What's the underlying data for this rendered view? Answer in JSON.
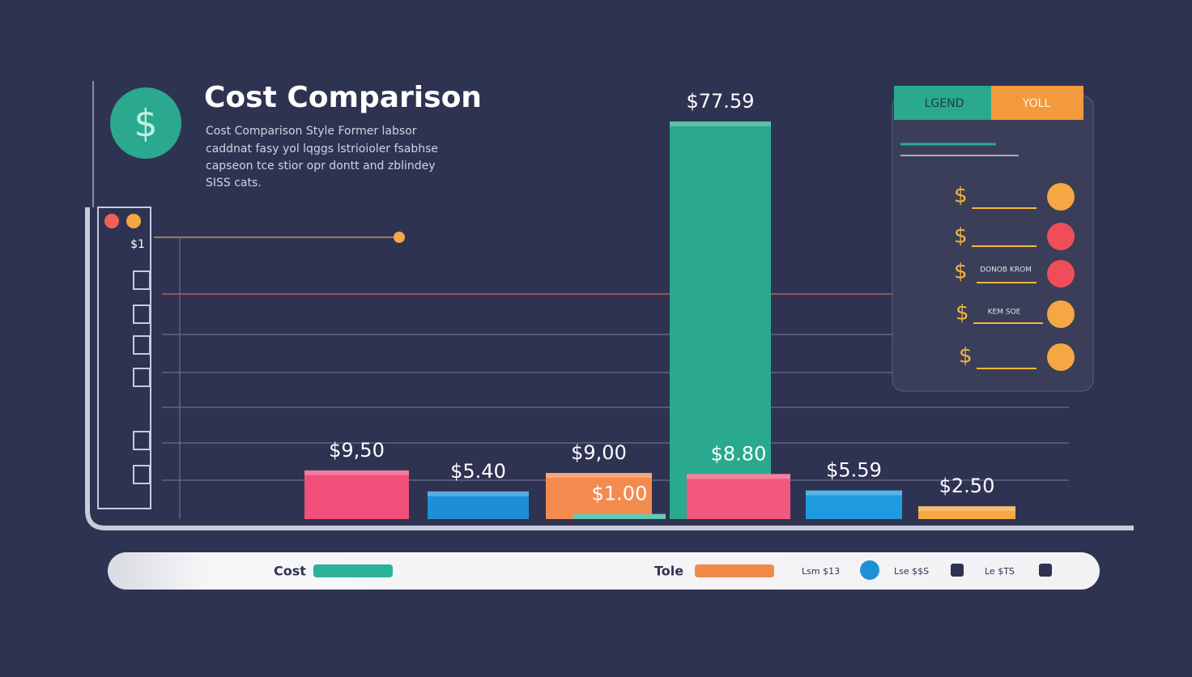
{
  "chart_data": {
    "type": "bar",
    "title": "Cost Comparison",
    "description": [
      "Cost Comparison Style Former labsor",
      "caddnat fasy yol lqggs lstrioioler fsabhse",
      "capseon tce stior opr dontt and zblindey",
      "SISS cats."
    ],
    "categories": [
      null,
      null,
      null,
      null,
      null,
      null,
      null,
      null
    ],
    "values": [
      9.5,
      5.4,
      9,
      1,
      77.59,
      8.8,
      5.59,
      2.5
    ],
    "value_labels": [
      "$9,50",
      "$5.40",
      "$9,00",
      "$1.00",
      "$77.59",
      "$8.80",
      "$5.59",
      "$2.50"
    ],
    "colors": [
      "#f0507a",
      "#1e8fd6",
      "#f38b4f",
      "#35b89a",
      "#2aa98e",
      "#f2587e",
      "#1f9ae0",
      "#f5a742"
    ]
  },
  "side_label": "$1",
  "legend_panel": {
    "tabs": [
      "LGEND",
      "YOLL"
    ],
    "items": [
      "DONOB KROM",
      "KEM SOE"
    ]
  },
  "bottom_bar": {
    "items": [
      {
        "label": "Cost",
        "color": "#2bb39a"
      },
      {
        "label": "Tole",
        "color": "#f08a4b"
      },
      {
        "label": "Lsm $13",
        "color": "#1e90d6"
      },
      {
        "label": "Lse $$S",
        "color": "#2d3350"
      },
      {
        "label": "Le $TS",
        "color": "#2d3350"
      }
    ]
  }
}
